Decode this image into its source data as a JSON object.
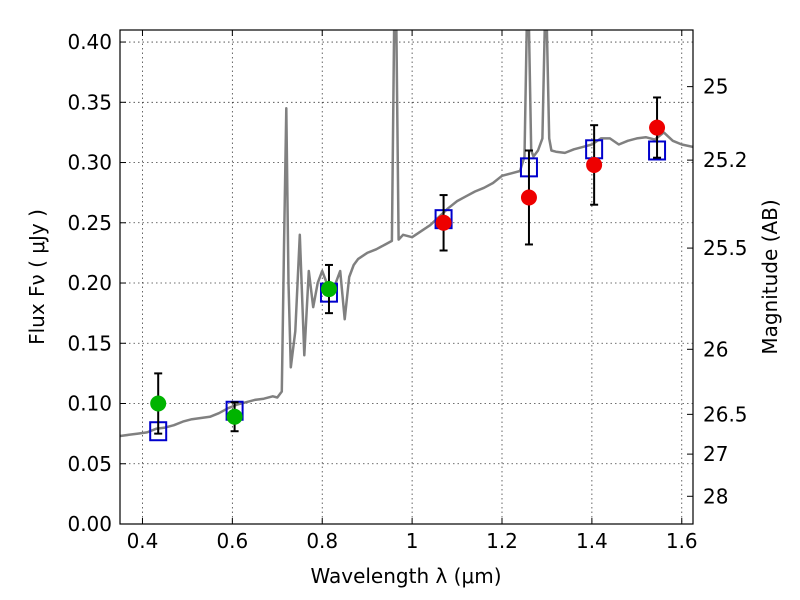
{
  "chart_data": {
    "type": "scatter",
    "title": "",
    "xlabel": "Wavelength  λ (μm)",
    "ylabel": "Flux  Fν  ( μJy )",
    "ylabel_right": "Magnitude (AB)",
    "xlim": [
      0.35,
      1.625
    ],
    "ylim": [
      0.0,
      0.41
    ],
    "grid": true,
    "x_ticks": [
      0.4,
      0.6,
      0.8,
      1.0,
      1.2,
      1.4,
      1.6
    ],
    "x_tick_labels": [
      "0.4",
      "0.6",
      "0.8",
      "1",
      "1.2",
      "1.4",
      "1.6"
    ],
    "y_ticks": [
      0.0,
      0.05,
      0.1,
      0.15,
      0.2,
      0.25,
      0.3,
      0.35,
      0.4
    ],
    "y_tick_labels": [
      "0.00",
      "0.05",
      "0.10",
      "0.15",
      "0.20",
      "0.25",
      "0.30",
      "0.35",
      "0.40"
    ],
    "right_ticks": [
      {
        "label": "25",
        "flux": 0.363
      },
      {
        "label": "25.2",
        "flux": 0.302
      },
      {
        "label": "25.5",
        "flux": 0.229
      },
      {
        "label": "26",
        "flux": 0.145
      },
      {
        "label": "26.5",
        "flux": 0.091
      },
      {
        "label": "27",
        "flux": 0.058
      },
      {
        "label": "28",
        "flux": 0.023
      }
    ],
    "series": [
      {
        "name": "model-spectrum",
        "kind": "line",
        "color": "#808080",
        "x": [
          0.35,
          0.37,
          0.39,
          0.41,
          0.43,
          0.45,
          0.47,
          0.49,
          0.51,
          0.53,
          0.55,
          0.57,
          0.59,
          0.61,
          0.63,
          0.65,
          0.67,
          0.69,
          0.7,
          0.71,
          0.715,
          0.72,
          0.725,
          0.73,
          0.74,
          0.75,
          0.76,
          0.77,
          0.78,
          0.79,
          0.8,
          0.81,
          0.82,
          0.83,
          0.84,
          0.85,
          0.86,
          0.87,
          0.88,
          0.9,
          0.92,
          0.94,
          0.955,
          0.96,
          0.965,
          0.97,
          0.98,
          1.0,
          1.02,
          1.04,
          1.06,
          1.08,
          1.1,
          1.12,
          1.14,
          1.16,
          1.18,
          1.2,
          1.22,
          1.24,
          1.25,
          1.255,
          1.26,
          1.265,
          1.27,
          1.28,
          1.29,
          1.295,
          1.3,
          1.305,
          1.31,
          1.32,
          1.34,
          1.36,
          1.38,
          1.4,
          1.42,
          1.44,
          1.46,
          1.48,
          1.5,
          1.52,
          1.54,
          1.56,
          1.58,
          1.6,
          1.625
        ],
        "y": [
          0.073,
          0.074,
          0.075,
          0.076,
          0.079,
          0.08,
          0.082,
          0.085,
          0.087,
          0.088,
          0.089,
          0.092,
          0.096,
          0.099,
          0.101,
          0.103,
          0.104,
          0.106,
          0.105,
          0.11,
          0.23,
          0.345,
          0.2,
          0.13,
          0.16,
          0.24,
          0.14,
          0.21,
          0.18,
          0.2,
          0.21,
          0.2,
          0.19,
          0.2,
          0.21,
          0.17,
          0.205,
          0.215,
          0.22,
          0.225,
          0.228,
          0.232,
          0.235,
          0.41,
          0.41,
          0.236,
          0.24,
          0.238,
          0.243,
          0.248,
          0.255,
          0.262,
          0.268,
          0.272,
          0.276,
          0.279,
          0.283,
          0.289,
          0.291,
          0.293,
          0.305,
          0.41,
          0.41,
          0.31,
          0.305,
          0.31,
          0.32,
          0.41,
          0.41,
          0.32,
          0.31,
          0.309,
          0.308,
          0.311,
          0.313,
          0.315,
          0.32,
          0.32,
          0.315,
          0.318,
          0.32,
          0.321,
          0.319,
          0.325,
          0.318,
          0.315,
          0.313
        ]
      },
      {
        "name": "model-photometry",
        "kind": "open-square",
        "color": "#0000cc",
        "x": [
          0.435,
          0.605,
          0.815,
          1.07,
          1.26,
          1.405,
          1.545
        ],
        "y": [
          0.077,
          0.094,
          0.192,
          0.253,
          0.296,
          0.311,
          0.31
        ]
      },
      {
        "name": "optical-observations",
        "kind": "filled-circle",
        "color": "#00b400",
        "x": [
          0.435,
          0.605,
          0.815
        ],
        "y": [
          0.1,
          0.089,
          0.195
        ],
        "err": [
          0.025,
          0.012,
          0.02
        ]
      },
      {
        "name": "near-ir-observations",
        "kind": "filled-circle",
        "color": "#ee0000",
        "x": [
          1.07,
          1.26,
          1.405,
          1.545
        ],
        "y": [
          0.25,
          0.271,
          0.298,
          0.329
        ],
        "err": [
          0.023,
          0.039,
          0.033,
          0.025
        ]
      }
    ]
  }
}
